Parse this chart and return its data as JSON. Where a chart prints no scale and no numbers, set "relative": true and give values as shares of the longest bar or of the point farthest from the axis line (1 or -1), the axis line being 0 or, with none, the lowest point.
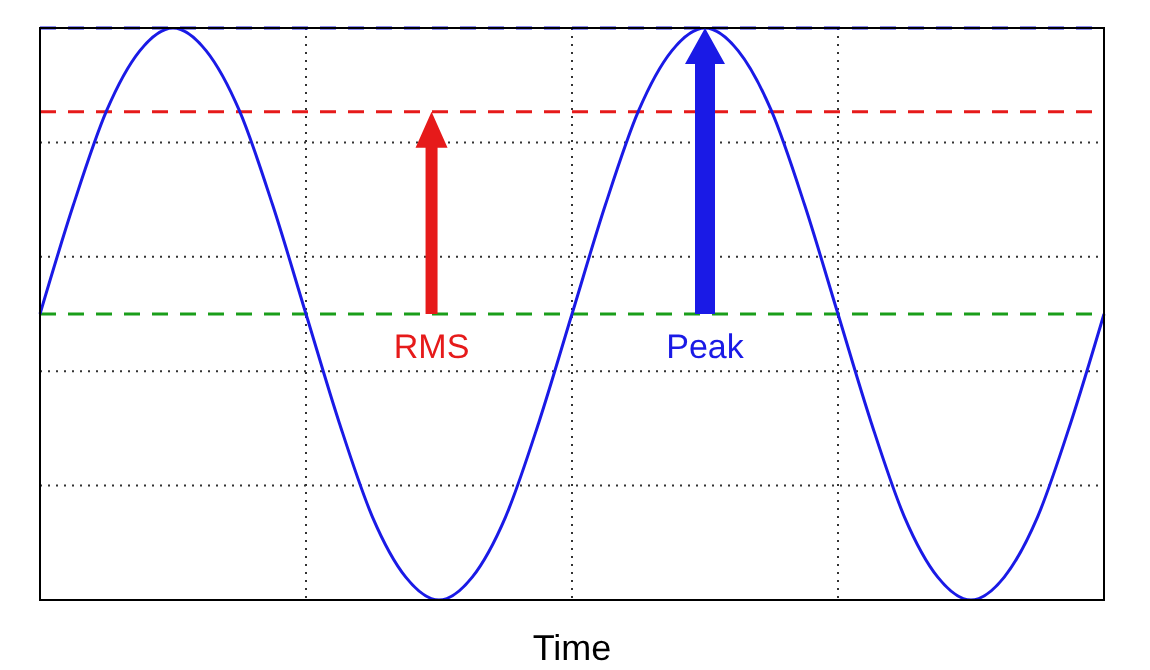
{
  "chart_data": {
    "type": "line",
    "relative": true,
    "xlabel": "Time",
    "categories": [
      null,
      null,
      null,
      null,
      null,
      null,
      null,
      null,
      null,
      null,
      null,
      null,
      null,
      null,
      null,
      null,
      null,
      null,
      null,
      null,
      null,
      null,
      null,
      null,
      null,
      null,
      null,
      null,
      null,
      null,
      null,
      null,
      null
    ],
    "series": [
      {
        "color": "#1a1ae6",
        "values": [
          0,
          0.38,
          0.71,
          0.92,
          1,
          0.92,
          0.71,
          0.38,
          0,
          -0.38,
          -0.71,
          -0.92,
          -1,
          -0.92,
          -0.71,
          -0.38,
          0,
          0.38,
          0.71,
          0.92,
          1,
          0.92,
          0.71,
          0.38,
          0,
          -0.38,
          -0.71,
          -0.92,
          -1,
          -0.92,
          -0.71,
          -0.38,
          0
        ]
      }
    ],
    "ref_lines": [
      {
        "axis": "y",
        "value": 0,
        "color": "#1a9e1a",
        "line_style": "dashed"
      },
      {
        "axis": "y",
        "value": 0.707,
        "color": "#e61a1a",
        "line_style": "dashed"
      },
      {
        "axis": "y",
        "value": 1,
        "color": "#1a1ae6",
        "line_style": "dashed"
      }
    ],
    "annotations": [
      "RMS",
      "Peak"
    ],
    "grid": true,
    "line_style": "solid"
  }
}
